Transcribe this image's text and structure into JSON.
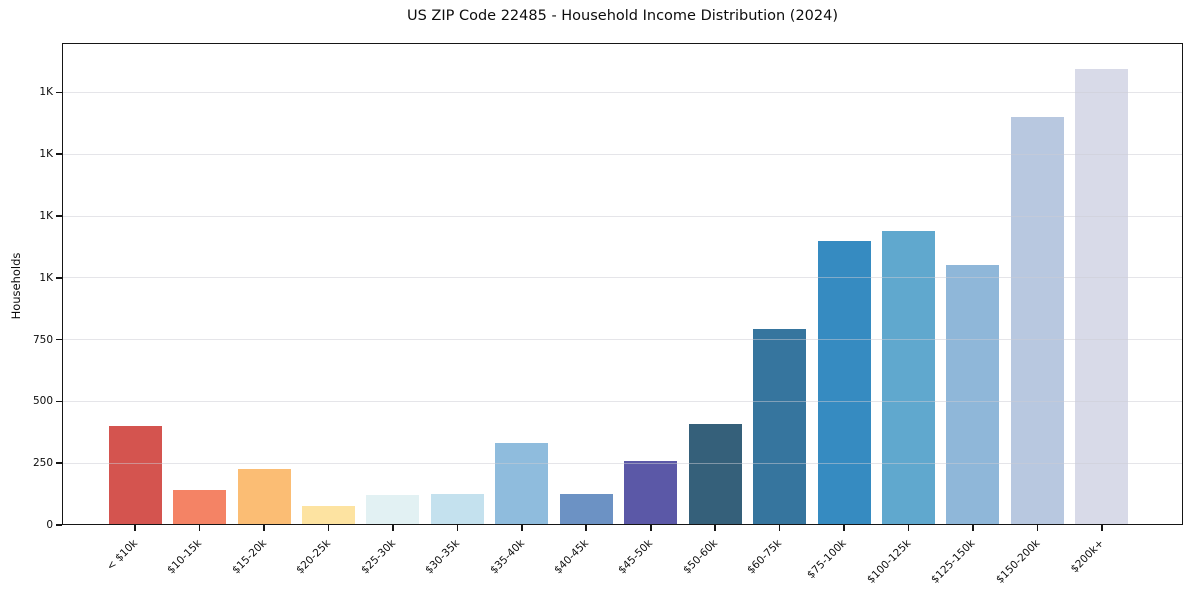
{
  "chart_data": {
    "type": "bar",
    "title": "US ZIP Code 22485 - Household Income Distribution (2024)",
    "xlabel": "",
    "ylabel": "Households",
    "categories": [
      "< $10k",
      "$10-15k",
      "$15-20k",
      "$20-25k",
      "$25-30k",
      "$30-35k",
      "$35-40k",
      "$40-45k",
      "$45-50k",
      "$50-60k",
      "$60-75k",
      "$75-100k",
      "$100-125k",
      "$125-150k",
      "$150-200k",
      "$200k+"
    ],
    "values": [
      400,
      140,
      225,
      75,
      120,
      125,
      330,
      125,
      260,
      410,
      795,
      1150,
      1190,
      1050,
      1650,
      1845
    ],
    "bar_colors": [
      "#d4544f",
      "#f48365",
      "#fbbd74",
      "#fde3a1",
      "#e2f1f3",
      "#c4e1ee",
      "#8fbcdd",
      "#6c92c4",
      "#5b58a7",
      "#35607a",
      "#36759e",
      "#368bc1",
      "#60a8ce",
      "#8fb7d9",
      "#b8c8e0",
      "#d8dae8"
    ],
    "ylim": [
      0,
      1950
    ],
    "y_ticks": [
      {
        "value": 0,
        "label": "0"
      },
      {
        "value": 250,
        "label": "250"
      },
      {
        "value": 500,
        "label": "500"
      },
      {
        "value": 750,
        "label": "750"
      },
      {
        "value": 1000,
        "label": "1K"
      },
      {
        "value": 1250,
        "label": "1K"
      },
      {
        "value": 1500,
        "label": "1K"
      },
      {
        "value": 1750,
        "label": "1K"
      }
    ],
    "grid": "horizontal",
    "legend_position": "none"
  },
  "style": {
    "background": "#ffffff",
    "spine_color": "#161616",
    "text_color": "#0d0d0d",
    "grid_color": "#e8e8ec"
  }
}
